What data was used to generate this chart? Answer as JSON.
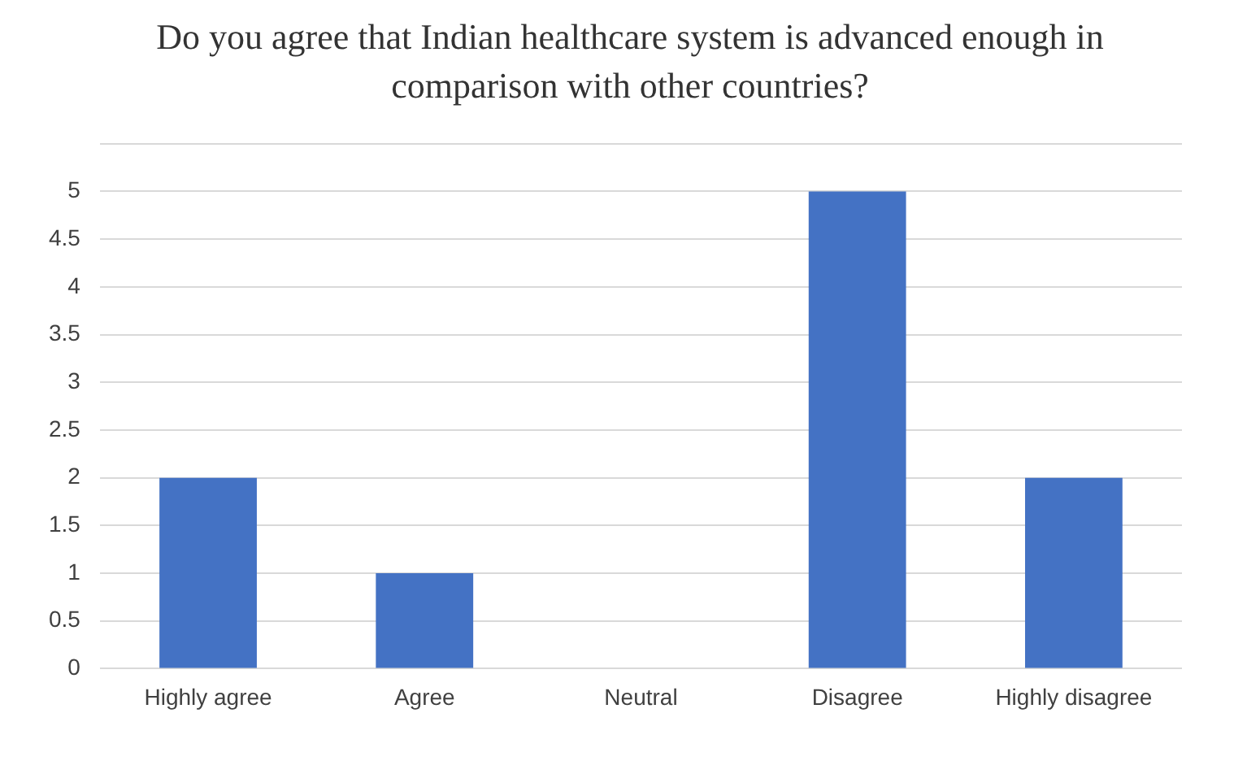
{
  "chart_data": {
    "type": "bar",
    "title": "Do you agree that Indian healthcare system is advanced enough in comparison with other countries?",
    "categories": [
      "Highly agree",
      "Agree",
      "Neutral",
      "Disagree",
      "Highly disagree"
    ],
    "values": [
      2,
      1,
      0,
      5,
      2
    ],
    "color": "#4472c4",
    "ylim": [
      0,
      5.5
    ],
    "yticks": [
      0,
      0.5,
      1,
      1.5,
      2,
      2.5,
      3,
      3.5,
      4,
      4.5,
      5,
      {
        "value": 5.5,
        "label": null
      }
    ],
    "grid": "y"
  }
}
